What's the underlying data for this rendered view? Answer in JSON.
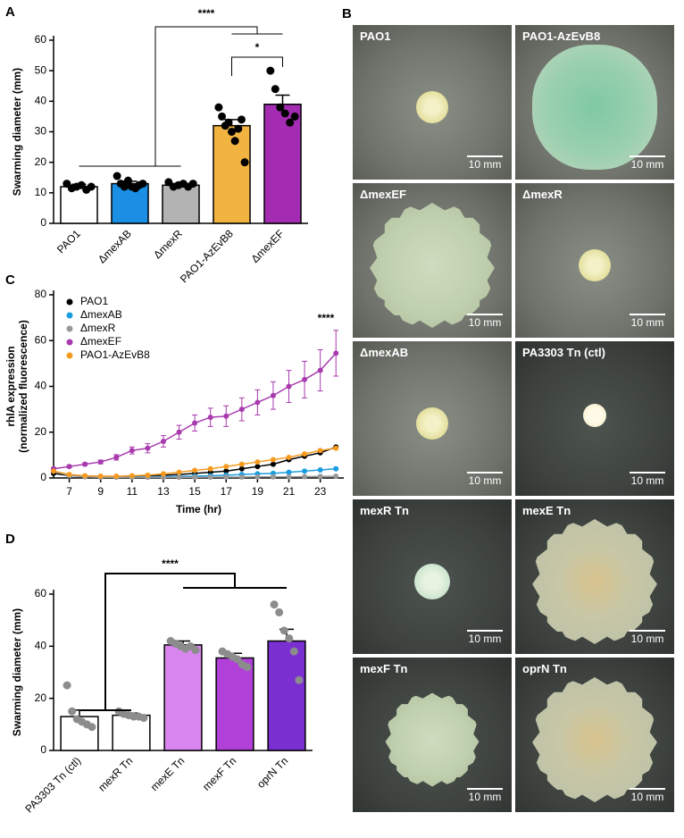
{
  "chart_data": [
    {
      "type": "bar",
      "label": "A",
      "y_label": "Swarming diameter (mm)",
      "categories": [
        "PAO1",
        "ΔmexAB",
        "ΔmexR",
        "PAO1-AzEvB8",
        "ΔmexEF"
      ],
      "values": [
        12,
        13,
        12.5,
        32,
        39
      ],
      "errors": [
        0.8,
        0.8,
        0.5,
        2,
        3
      ],
      "points": [
        [
          13,
          11.5,
          12,
          12.5,
          11,
          12
        ],
        [
          15.5,
          13,
          12,
          14,
          12,
          11.5,
          12.5,
          13
        ],
        [
          13.5,
          12,
          12.5,
          13,
          12,
          13
        ],
        [
          38,
          35,
          32,
          33,
          30,
          27,
          31,
          34,
          20
        ],
        [
          50,
          44,
          38,
          36,
          33,
          35
        ]
      ],
      "colors": [
        "#ffffff",
        "#1a8fe3",
        "#b3b3b3",
        "#f2b441",
        "#a42cb3"
      ],
      "point_color": "#000000",
      "ylim": [
        0,
        60
      ],
      "yticks": [
        0,
        10,
        20,
        30,
        40,
        50,
        60
      ],
      "annotations": [
        "****",
        "*"
      ]
    },
    {
      "type": "line",
      "label": "C",
      "y_label": [
        "rhlA expression",
        "(normalized fluorescence)"
      ],
      "x_label": "Time (hr)",
      "x": [
        6,
        7,
        8,
        9,
        10,
        11,
        12,
        13,
        14,
        15,
        16,
        17,
        18,
        19,
        20,
        21,
        22,
        23,
        24
      ],
      "series": [
        {
          "name": "PAO1",
          "color": "#000000",
          "values": [
            2,
            1,
            0.8,
            0.6,
            0.6,
            0.8,
            1,
            1.2,
            1.5,
            2,
            2.5,
            3,
            4,
            5,
            6,
            8,
            9.5,
            11,
            13.5
          ]
        },
        {
          "name": "ΔmexAB",
          "color": "#1a9ce0",
          "values": [
            3,
            1,
            0.6,
            0.4,
            0.4,
            0.4,
            0.5,
            0.6,
            0.7,
            0.8,
            1,
            1.2,
            1.5,
            1.8,
            2,
            2.5,
            3,
            3.5,
            4
          ]
        },
        {
          "name": "ΔmexR",
          "color": "#999999",
          "values": [
            3,
            1,
            0.5,
            0.3,
            0.3,
            0.3,
            0.3,
            0.3,
            0.3,
            0.3,
            0.4,
            0.4,
            0.4,
            0.5,
            0.5,
            0.5,
            0.6,
            0.7,
            0.8
          ]
        },
        {
          "name": "ΔmexEF",
          "color": "#a83aae",
          "values": [
            4,
            5,
            6,
            7,
            9,
            12,
            13,
            16,
            20,
            24,
            26.5,
            27,
            30,
            33,
            36,
            40,
            43,
            47,
            54.5
          ],
          "errors": [
            0.5,
            0.5,
            0.6,
            0.8,
            1.2,
            1.5,
            2,
            2.5,
            3,
            3.5,
            4,
            4.5,
            5,
            5.5,
            6,
            7,
            8,
            9,
            10
          ]
        },
        {
          "name": "PAO1-AzEvB8",
          "color": "#f59a1e",
          "values": [
            3,
            1.5,
            1,
            0.8,
            0.8,
            1,
            1.2,
            1.8,
            2.5,
            3.3,
            4,
            5,
            6,
            7,
            8,
            9,
            10.5,
            12,
            13
          ]
        }
      ],
      "xlim": [
        6,
        24.5
      ],
      "xticks": [
        7,
        9,
        11,
        13,
        15,
        17,
        19,
        21,
        23
      ],
      "ylim": [
        0,
        80
      ],
      "yticks": [
        0,
        20,
        40,
        60,
        80
      ],
      "legend": "upper left",
      "annotations": [
        "****"
      ]
    },
    {
      "type": "bar",
      "label": "D",
      "y_label": "Swarming diameter (mm)",
      "categories": [
        "PA3303 Tn (ctl)",
        "mexR Tn",
        "mexE Tn",
        "mexF Tn",
        "oprN Tn"
      ],
      "values": [
        13,
        13.5,
        40.5,
        35.5,
        42
      ],
      "errors": [
        2.5,
        0.8,
        1.5,
        1.8,
        4.5
      ],
      "points": [
        [
          25,
          15,
          12,
          11,
          10,
          9
        ],
        [
          15,
          14,
          13.5,
          13,
          13,
          12.5
        ],
        [
          42,
          41,
          40,
          39,
          40,
          38.5
        ],
        [
          38,
          37,
          36,
          35,
          33,
          32
        ],
        [
          56,
          53,
          46,
          43,
          38,
          27
        ]
      ],
      "colors": [
        "#ffffff",
        "#ffffff",
        "#d985f0",
        "#b040d8",
        "#7a2fd0"
      ],
      "point_color": "#8c8c8c",
      "ylim": [
        0,
        60
      ],
      "yticks": [
        0,
        20,
        40,
        60
      ],
      "annotations": [
        "****"
      ]
    }
  ],
  "photo_panel": {
    "label": "B",
    "tiles": [
      {
        "label": "PAO1",
        "scale_bar": "10 mm"
      },
      {
        "label": "PAO1-AzEvB8",
        "scale_bar": "10 mm"
      },
      {
        "label": "ΔmexEF",
        "scale_bar": "10 mm"
      },
      {
        "label": "ΔmexR",
        "scale_bar": "10 mm"
      },
      {
        "label": "ΔmexAB",
        "scale_bar": "10 mm"
      },
      {
        "label": "PA3303 Tn (ctl)",
        "scale_bar": "10 mm"
      },
      {
        "label": "mexR Tn",
        "scale_bar": "10 mm"
      },
      {
        "label": "mexE Tn",
        "scale_bar": "10 mm"
      },
      {
        "label": "mexF Tn",
        "scale_bar": "10 mm"
      },
      {
        "label": "oprN Tn",
        "scale_bar": "10 mm"
      }
    ]
  }
}
